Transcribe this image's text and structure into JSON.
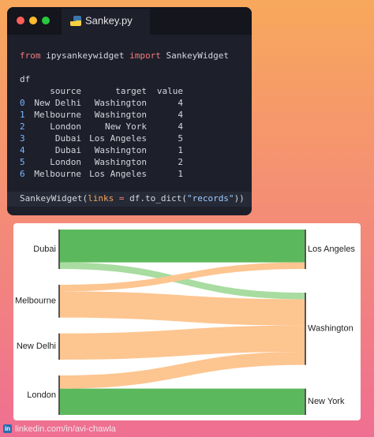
{
  "window": {
    "tab_title": "Sankey.py",
    "import_line": [
      {
        "text": "from",
        "color": "#f47c7c"
      },
      {
        "text": " ipysankeywidget ",
        "color": "#d4d7dd"
      },
      {
        "text": "import",
        "color": "#f47c7c"
      },
      {
        "text": " SankeyWidget",
        "color": "#d4d7dd"
      }
    ],
    "df_label": "df",
    "call_line": [
      {
        "text": "SankeyWidget(",
        "color": "#d4d7dd"
      },
      {
        "text": "links",
        "color": "#f0a45d"
      },
      {
        "text": " ",
        "color": "#d4d7dd"
      },
      {
        "text": "=",
        "color": "#f47c7c"
      },
      {
        "text": " df.to_dict(",
        "color": "#d4d7dd"
      },
      {
        "text": "\"records\"",
        "color": "#9ecbff"
      },
      {
        "text": "))",
        "color": "#d4d7dd"
      }
    ]
  },
  "table": {
    "header": [
      "source",
      "target",
      "value"
    ],
    "rows": [
      [
        0,
        "New Delhi",
        "Washington",
        4
      ],
      [
        1,
        "Melbourne",
        "Washington",
        4
      ],
      [
        2,
        "London",
        "New York",
        4
      ],
      [
        3,
        "Dubai",
        "Los Angeles",
        5
      ],
      [
        4,
        "Dubai",
        "Washington",
        1
      ],
      [
        5,
        "London",
        "Washington",
        2
      ],
      [
        6,
        "Melbourne",
        "Los Angeles",
        1
      ]
    ]
  },
  "sankey": {
    "source_nodes": [
      "Dubai",
      "Melbourne",
      "New Delhi",
      "London"
    ],
    "target_nodes": [
      "Los Angeles",
      "Washington",
      "New York"
    ],
    "link_colors": [
      "#fdc590",
      "#fdc590",
      "#5cb85c",
      "#5cb85c",
      "#a8dca0",
      "#fdc590",
      "#fdc590"
    ]
  },
  "footer": {
    "icon": "in",
    "text": "linkedin.com/in/avi-chawla"
  }
}
